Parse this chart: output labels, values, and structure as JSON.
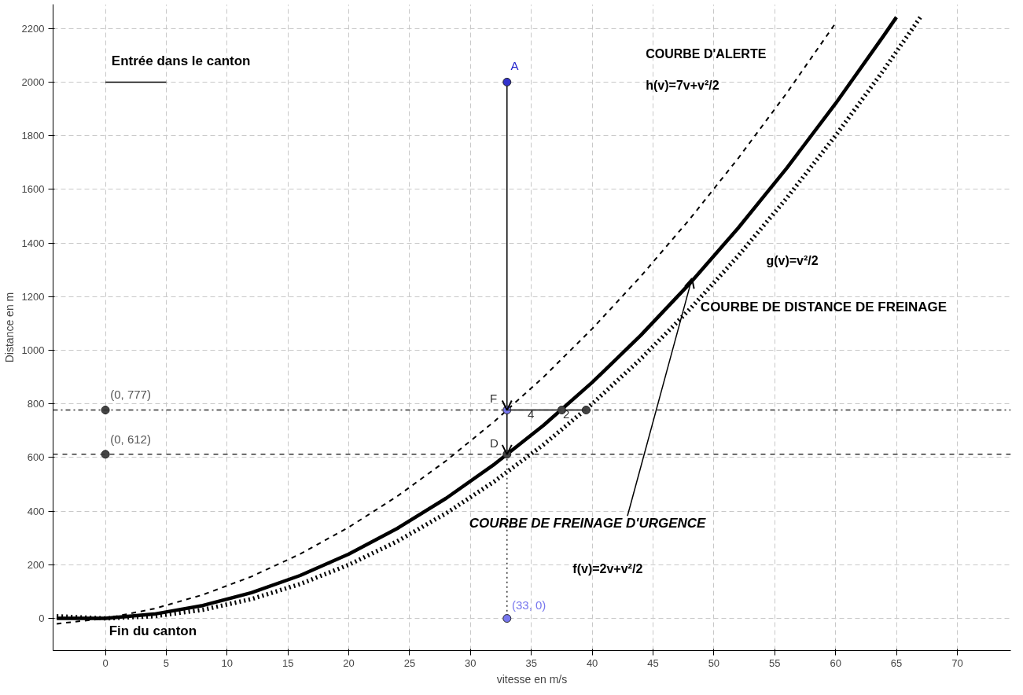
{
  "chart_data": {
    "type": "line",
    "xlabel": "vitesse en m/s",
    "ylabel": "Distance en m",
    "xlim": [
      -4.3,
      74.4
    ],
    "ylim": [
      -120,
      2290
    ],
    "xticks": [
      0,
      5,
      10,
      15,
      20,
      25,
      30,
      35,
      40,
      45,
      50,
      55,
      60,
      65,
      70
    ],
    "yticks": [
      0,
      200,
      400,
      600,
      800,
      1000,
      1200,
      1400,
      1600,
      1800,
      2000,
      2200
    ],
    "grid": true,
    "series": [
      {
        "color": "#000000",
        "line_style": "dashed",
        "x": [
          -4,
          0,
          4,
          8,
          12,
          16,
          20,
          24,
          28,
          32,
          36,
          40,
          44,
          48,
          52,
          56,
          60
        ],
        "values": [
          -20,
          0,
          36,
          88,
          156,
          240,
          340,
          456,
          588,
          736,
          900,
          1080,
          1276,
          1488,
          1716,
          1960,
          2220
        ]
      },
      {
        "color": "#000000",
        "line_style": "solid",
        "x": [
          -4,
          0,
          4,
          8,
          12,
          16,
          20,
          24,
          28,
          32,
          36,
          40,
          44,
          48,
          52,
          56,
          60,
          64,
          65
        ],
        "values": [
          0,
          0,
          16,
          48,
          96,
          160,
          240,
          336,
          448,
          576,
          720,
          880,
          1056,
          1248,
          1456,
          1680,
          1920,
          2176,
          2242
        ]
      },
      {
        "color": "#000000",
        "line_style": "dotted",
        "x": [
          -4,
          0,
          4,
          8,
          12,
          16,
          20,
          24,
          28,
          32,
          36,
          40,
          44,
          48,
          52,
          56,
          60,
          64,
          67
        ],
        "values": [
          8,
          0,
          8,
          32,
          72,
          128,
          200,
          288,
          392,
          512,
          648,
          800,
          968,
          1152,
          1352,
          1568,
          1800,
          2048,
          2244
        ]
      },
      {
        "color": "#000000",
        "line_style": "solid",
        "x": [
          0,
          5
        ],
        "values": [
          2000,
          2000
        ]
      },
      {
        "color": "#000000",
        "line_style": "solid",
        "x": [
          33,
          33
        ],
        "values": [
          2000,
          777
        ]
      },
      {
        "color": "#000000",
        "line_style": "solid",
        "x": [
          33,
          33
        ],
        "values": [
          777,
          612
        ]
      },
      {
        "color": "#000000",
        "line_style": "solid",
        "x": [
          33,
          39.5
        ],
        "values": [
          777,
          777
        ]
      },
      {
        "color": "#333333",
        "line_style": "dotted",
        "x": [
          33,
          33
        ],
        "values": [
          612,
          0
        ]
      },
      {
        "color": "#000000",
        "line_style": "solid",
        "x": [
          42.9,
          48.2
        ],
        "values": [
          382,
          1268
        ]
      },
      {
        "type": "scatter",
        "marker": "circle",
        "x": [
          33,
          0,
          0,
          33,
          33,
          33,
          37.5,
          39.5
        ],
        "values": [
          2000,
          777,
          612,
          777,
          612,
          0,
          777,
          777
        ],
        "colors": [
          "#3333cc",
          "#444444",
          "#444444",
          "#7777ee",
          "#444444",
          "#7777ee",
          "#444444",
          "#444444"
        ]
      }
    ],
    "ref_lines": [
      {
        "axis": "y",
        "value": 777,
        "color": "#333333",
        "line_style": "dashdot"
      },
      {
        "axis": "y",
        "value": 612,
        "color": "#333333",
        "line_style": "dashed"
      }
    ],
    "annotations": [
      "COURBE D'ALERTE",
      "h(v)=7v+v²/2",
      "g(v)=v²/2",
      "COURBE DE DISTANCE DE FREINAGE",
      "COURBE DE FREINAGE D'URGENCE",
      "f(v)=2v+v²/2",
      "Entrée dans le canton",
      "Fin du canton",
      "A",
      "F",
      "D",
      "(0, 777)",
      "(0, 612)",
      "(33, 0)",
      "4",
      "2"
    ]
  }
}
